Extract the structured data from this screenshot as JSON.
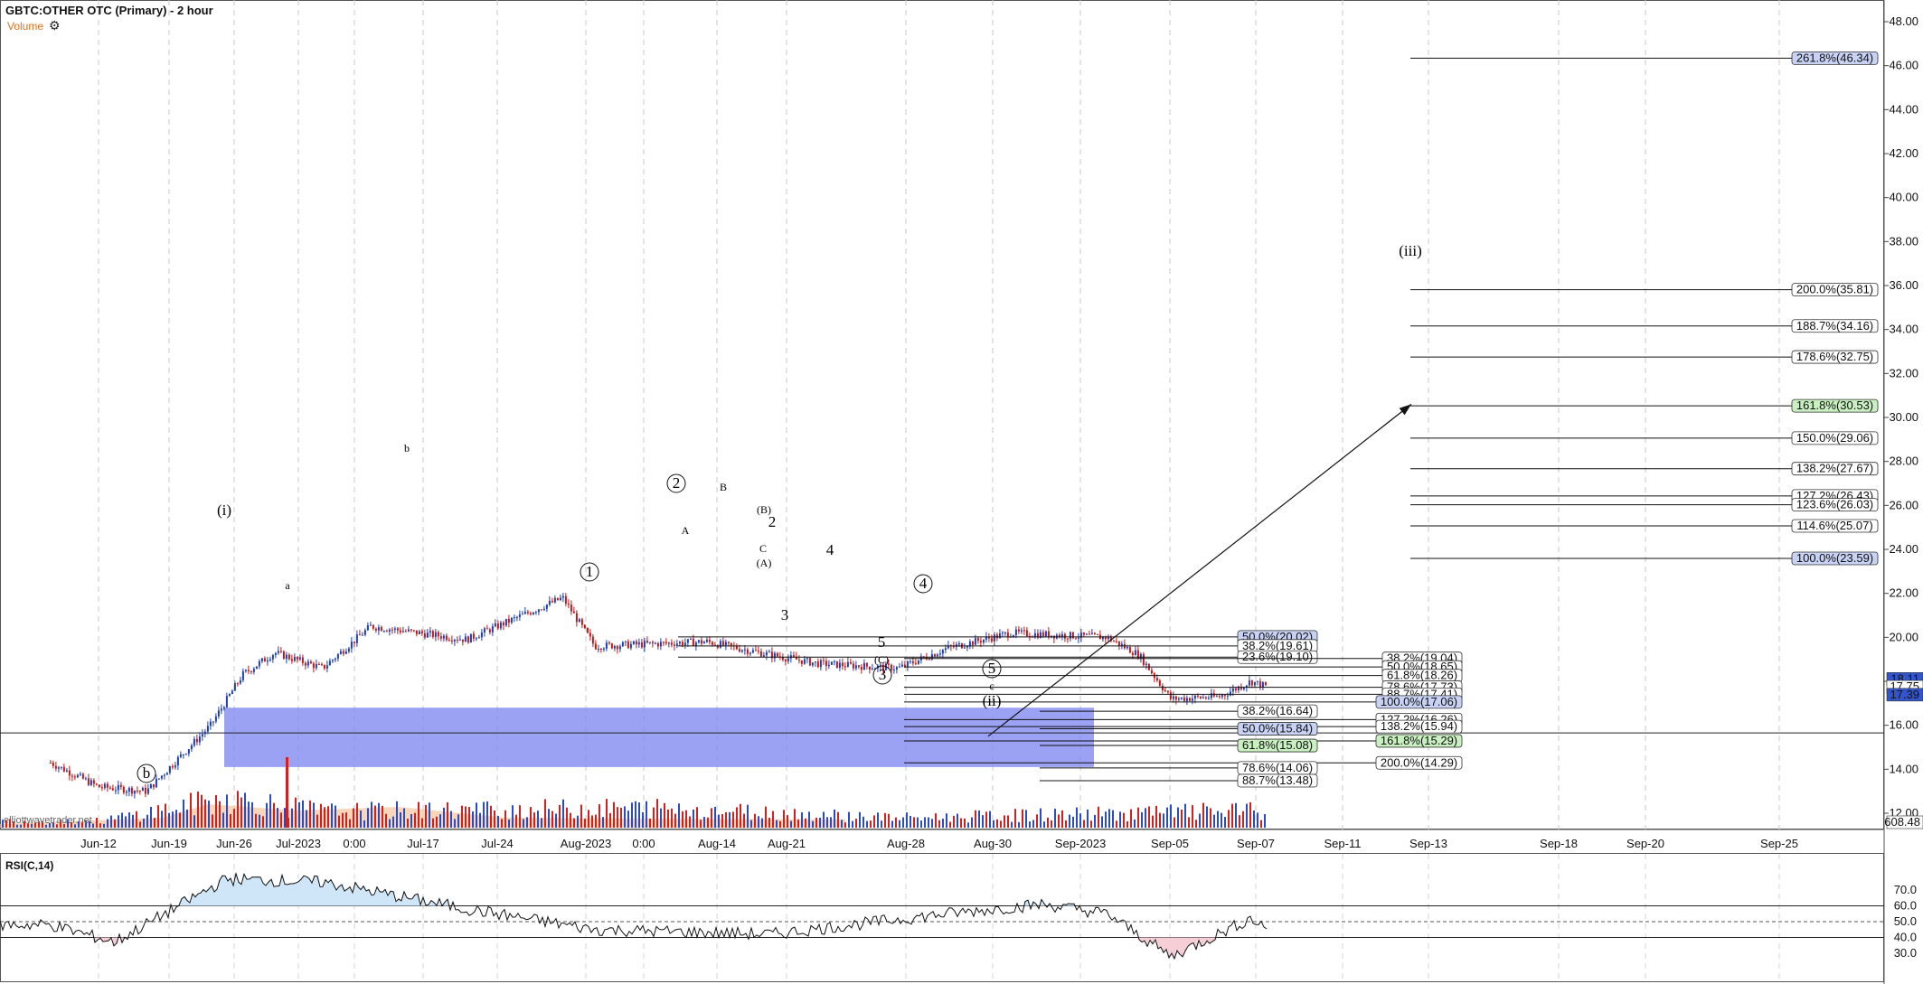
{
  "header": {
    "title": "GBTC:OTHER OTC (Primary) - 2 hour",
    "volume_label": "Volume",
    "settings_icon": "gear-icon"
  },
  "rsi": {
    "label": "RSI(C,14)",
    "ticks": [
      "70.0",
      "60.0",
      "50.0",
      "40.0",
      "30.0"
    ]
  },
  "watermark": "elliottwavetrader.net",
  "price_tag": "608.48",
  "price_axis": {
    "ticks": [
      "48.00",
      "46.00",
      "44.00",
      "42.00",
      "40.00",
      "38.00",
      "36.00",
      "34.00",
      "32.00",
      "30.00",
      "28.00",
      "26.00",
      "24.00",
      "22.00",
      "20.00",
      "18.00",
      "16.00",
      "14.00",
      "12.00"
    ],
    "current_labels": [
      {
        "text": "18.11",
        "value": 18.11,
        "color": "#3355cc"
      },
      {
        "text": "17.75",
        "value": 17.75,
        "color": "#ffffff"
      },
      {
        "text": "17.39",
        "value": 17.39,
        "color": "#3355cc"
      }
    ]
  },
  "x_axis": {
    "ticks": [
      "Jun-12",
      "Jun-19",
      "Jun-26",
      "Jul-2023",
      "0:00",
      "Jul-17",
      "Jul-24",
      "Aug-2023",
      "0:00",
      "Aug-14",
      "Aug-21",
      "Aug-28",
      "Aug-30",
      "Sep-2023",
      "Sep-05",
      "Sep-07",
      "Sep-11",
      "Sep-13",
      "Sep-18",
      "Sep-20",
      "Sep-25"
    ]
  },
  "fib_lines": [
    {
      "label": "261.8%(46.34)",
      "price": 46.34,
      "fill": "#c8d2f5",
      "x0": 1560,
      "x1": 2077
    },
    {
      "label": "200.0%(35.81)",
      "price": 35.81,
      "fill": "#ffffff",
      "x0": 1560,
      "x1": 2077
    },
    {
      "label": "188.7%(34.16)",
      "price": 34.16,
      "fill": "#ffffff",
      "x0": 1560,
      "x1": 2077
    },
    {
      "label": "178.6%(32.75)",
      "price": 32.75,
      "fill": "#ffffff",
      "x0": 1560,
      "x1": 2077
    },
    {
      "label": "161.8%(30.53)",
      "price": 30.53,
      "fill": "#c8f0c0",
      "x0": 1560,
      "x1": 2077
    },
    {
      "label": "150.0%(29.06)",
      "price": 29.06,
      "fill": "#ffffff",
      "x0": 1560,
      "x1": 2077
    },
    {
      "label": "138.2%(27.67)",
      "price": 27.67,
      "fill": "#ffffff",
      "x0": 1560,
      "x1": 2077
    },
    {
      "label": "127.2%(26.43)",
      "price": 26.43,
      "fill": "#ffffff",
      "x0": 1560,
      "x1": 2077
    },
    {
      "label": "123.6%(26.03)",
      "price": 26.03,
      "fill": "#ffffff",
      "x0": 1560,
      "x1": 2077
    },
    {
      "label": "114.6%(25.07)",
      "price": 25.07,
      "fill": "#ffffff",
      "x0": 1560,
      "x1": 2077
    },
    {
      "label": "100.0%(23.59)",
      "price": 23.59,
      "fill": "#c8d2f5",
      "x0": 1560,
      "x1": 2077
    },
    {
      "label": "50.0%(20.02)",
      "price": 20.02,
      "fill": "#c8d2f5",
      "x0": 750,
      "x1": 1457
    },
    {
      "label": "38.2%(19.61)",
      "price": 19.61,
      "fill": "#ffffff",
      "x0": 750,
      "x1": 1457
    },
    {
      "label": "23.6%(19.10)",
      "price": 19.1,
      "fill": "#ffffff",
      "x0": 750,
      "x1": 1457
    },
    {
      "label": "38.2%(19.04)",
      "price": 19.04,
      "fill": "#ffffff",
      "x0": 1000,
      "x1": 1617
    },
    {
      "label": "50.0%(18.65)",
      "price": 18.65,
      "fill": "#ffffff",
      "x0": 1000,
      "x1": 1617
    },
    {
      "label": "61.8%(18.26)",
      "price": 18.26,
      "fill": "#ffffff",
      "x0": 1000,
      "x1": 1617
    },
    {
      "label": "78.6%(17.73)",
      "price": 17.73,
      "fill": "#ffffff",
      "x0": 1000,
      "x1": 1617
    },
    {
      "label": "88.7%(17.41)",
      "price": 17.41,
      "fill": "#ffffff",
      "x0": 1000,
      "x1": 1617
    },
    {
      "label": "100.0%(17.06)",
      "price": 17.06,
      "fill": "#c8d2f5",
      "x0": 1000,
      "x1": 1617
    },
    {
      "label": "38.2%(16.64)",
      "price": 16.64,
      "fill": "#ffffff",
      "x0": 1150,
      "x1": 1457
    },
    {
      "label": "127.2%(16.26)",
      "price": 16.26,
      "fill": "#ffffff",
      "x0": 1000,
      "x1": 1617
    },
    {
      "label": "138.2%(15.94)",
      "price": 15.94,
      "fill": "#ffffff",
      "x0": 1000,
      "x1": 1617
    },
    {
      "label": "50.0%(15.84)",
      "price": 15.84,
      "fill": "#c8d2f5",
      "x0": 1150,
      "x1": 1457
    },
    {
      "label": "161.8%(15.29)",
      "price": 15.29,
      "fill": "#c8f0c0",
      "x0": 1000,
      "x1": 1617
    },
    {
      "label": "61.8%(15.08)",
      "price": 15.08,
      "fill": "#c8f0c0",
      "x0": 1150,
      "x1": 1457
    },
    {
      "label": "200.0%(14.29)",
      "price": 14.29,
      "fill": "#ffffff",
      "x0": 1000,
      "x1": 1617
    },
    {
      "label": "78.6%(14.06)",
      "price": 14.06,
      "fill": "#ffffff",
      "x0": 1150,
      "x1": 1457
    },
    {
      "label": "88.7%(13.48)",
      "price": 13.48,
      "fill": "#ffffff",
      "x0": 1150,
      "x1": 1457
    }
  ],
  "wave_labels": [
    {
      "text": "(i)",
      "style": "plain"
    },
    {
      "text": "a",
      "style": "small"
    },
    {
      "text": "b",
      "style": "small"
    },
    {
      "text": "b",
      "style": "circle"
    },
    {
      "text": "1",
      "style": "circle"
    },
    {
      "text": "2",
      "style": "circle"
    },
    {
      "text": "B",
      "style": "small"
    },
    {
      "text": "A",
      "style": "small"
    },
    {
      "text": "(B)",
      "style": "small"
    },
    {
      "text": "2",
      "style": "plain"
    },
    {
      "text": "C",
      "style": "small"
    },
    {
      "text": "(A)",
      "style": "small"
    },
    {
      "text": "3",
      "style": "plain"
    },
    {
      "text": "4",
      "style": "plain"
    },
    {
      "text": "4",
      "style": "circle"
    },
    {
      "text": "5",
      "style": "plain"
    },
    {
      "text": "(C)",
      "style": "small"
    },
    {
      "text": "3",
      "style": "circle"
    },
    {
      "text": "5",
      "style": "circle"
    },
    {
      "text": "c",
      "style": "small"
    },
    {
      "text": "(ii)",
      "style": "blue"
    },
    {
      "text": "(iii)",
      "style": "plain"
    }
  ],
  "target_zone": {
    "price_top": 16.8,
    "price_bottom": 14.1,
    "color": "#7f86f0"
  },
  "horizontal_line_price": 15.65,
  "arrow": {
    "from_price": 15.5,
    "to_price": 30.6
  },
  "chart_data": {
    "type": "candlestick",
    "title": "GBTC:OTHER OTC (Primary) - 2 hour",
    "ylim": [
      11.5,
      48.5
    ],
    "price_path": [
      {
        "x": "Jun-09",
        "y": 14.3
      },
      {
        "x": "Jun-12",
        "y": 13.2
      },
      {
        "x": "Jun-15",
        "y": 13.0
      },
      {
        "x": "Jun-19",
        "y": 16.0
      },
      {
        "x": "Jun-21",
        "y": 18.3
      },
      {
        "x": "Jun-23",
        "y": 19.3
      },
      {
        "x": "Jun-26",
        "y": 18.6
      },
      {
        "x": "Jun-29",
        "y": 20.5
      },
      {
        "x": "Jul-05",
        "y": 19.9
      },
      {
        "x": "Jul-11",
        "y": 21.8
      },
      {
        "x": "Jul-13",
        "y": 19.6
      },
      {
        "x": "Jul-20",
        "y": 19.8
      },
      {
        "x": "Jul-24",
        "y": 19.2
      },
      {
        "x": "Jul-27",
        "y": 18.8
      },
      {
        "x": "Aug-01",
        "y": 18.6
      },
      {
        "x": "Aug-04",
        "y": 19.5
      },
      {
        "x": "Aug-08",
        "y": 20.2
      },
      {
        "x": "Aug-14",
        "y": 20.0
      },
      {
        "x": "Aug-16",
        "y": 19.2
      },
      {
        "x": "Aug-18",
        "y": 17.2
      },
      {
        "x": "Aug-21",
        "y": 17.3
      },
      {
        "x": "Aug-23",
        "y": 18.0
      },
      {
        "x": "Aug-24",
        "y": 17.75
      }
    ],
    "volume_path": [
      {
        "x": "Jun-12",
        "y": 0.2
      },
      {
        "x": "Jun-20",
        "y": 0.9
      },
      {
        "x": "Jun-26",
        "y": 0.5
      },
      {
        "x": "Jul-17",
        "y": 0.6
      },
      {
        "x": "Aug-01",
        "y": 0.3
      },
      {
        "x": "Aug-21",
        "y": 0.5
      }
    ],
    "rsi_path": [
      {
        "x": "Jun-09",
        "y": 48
      },
      {
        "x": "Jun-13",
        "y": 37
      },
      {
        "x": "Jun-20",
        "y": 77
      },
      {
        "x": "Jun-26",
        "y": 75
      },
      {
        "x": "Jul-05",
        "y": 58
      },
      {
        "x": "Jul-13",
        "y": 45
      },
      {
        "x": "Jul-24",
        "y": 42
      },
      {
        "x": "Aug-04",
        "y": 55
      },
      {
        "x": "Aug-10",
        "y": 61
      },
      {
        "x": "Aug-14",
        "y": 55
      },
      {
        "x": "Aug-18",
        "y": 28
      },
      {
        "x": "Aug-23",
        "y": 52
      },
      {
        "x": "Aug-24",
        "y": 46
      }
    ]
  }
}
